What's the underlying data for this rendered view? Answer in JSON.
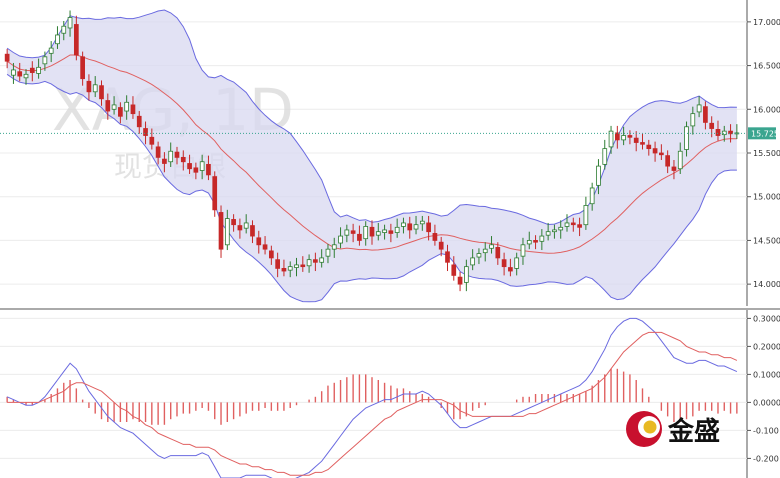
{
  "watermark": {
    "symbol": "XAG, 1D",
    "subtitle": "现货白银"
  },
  "brand": {
    "name": "金盛",
    "color_red": "#c8102e",
    "color_gold": "#e8b923"
  },
  "current_price": {
    "label": "15.725",
    "value": 15.725,
    "tag_color": "#3aa58f"
  },
  "colors": {
    "up": "#2e7d32",
    "down": "#c62828",
    "band_fill": "#d8d8f0",
    "band_line": "#6a6ae0",
    "mid_line": "#e06060",
    "macd_line": "#6a6ae0",
    "signal_line": "#e06060",
    "hist_up": "#e06060",
    "hist_down": "#e06060"
  },
  "chart_data": [
    {
      "type": "candlestick",
      "title": "",
      "ylim": [
        13.75,
        17.25
      ],
      "y_ticks": [
        "17.000",
        "16.500",
        "16.000",
        "15.500",
        "15.000",
        "14.500",
        "14.000"
      ],
      "y_tick_values": [
        17.0,
        16.5,
        16.0,
        15.5,
        15.0,
        14.5,
        14.0
      ],
      "grid": true,
      "overlays": [
        "bollinger-upper",
        "bollinger-middle",
        "bollinger-lower"
      ],
      "close": [
        16.55,
        16.45,
        16.38,
        16.4,
        16.42,
        16.48,
        16.6,
        16.7,
        16.85,
        16.95,
        17.05,
        16.62,
        16.35,
        16.2,
        16.28,
        16.12,
        15.98,
        16.05,
        15.92,
        16.08,
        15.95,
        15.8,
        15.7,
        15.6,
        15.45,
        15.38,
        15.52,
        15.45,
        15.4,
        15.32,
        15.28,
        15.4,
        15.25,
        14.85,
        14.4,
        14.75,
        14.68,
        14.62,
        14.7,
        14.55,
        14.45,
        14.4,
        14.3,
        14.18,
        14.15,
        14.2,
        14.22,
        14.2,
        14.28,
        14.25,
        14.3,
        14.4,
        14.45,
        14.55,
        14.62,
        14.58,
        14.5,
        14.66,
        14.55,
        14.6,
        14.62,
        14.58,
        14.65,
        14.7,
        14.62,
        14.68,
        14.72,
        14.6,
        14.5,
        14.4,
        14.25,
        14.1,
        14.0,
        14.2,
        14.3,
        14.35,
        14.4,
        14.45,
        14.3,
        14.2,
        14.15,
        14.3,
        14.45,
        14.5,
        14.48,
        14.55,
        14.6,
        14.62,
        14.65,
        14.7,
        14.68,
        14.65,
        14.9,
        15.1,
        15.35,
        15.55,
        15.75,
        15.65,
        15.7,
        15.68,
        15.62,
        15.6,
        15.55,
        15.5,
        15.48,
        15.35,
        15.3,
        15.52,
        15.8,
        15.95,
        16.05,
        15.85,
        15.78,
        15.7,
        15.75,
        15.72,
        15.73
      ],
      "open_offset": [
        0.08,
        -0.06,
        0.05,
        -0.04,
        0.05,
        -0.07,
        -0.08,
        -0.06,
        -0.1,
        -0.08,
        -0.12,
        0.35,
        0.25,
        0.12,
        -0.08,
        0.15,
        0.12,
        -0.05,
        0.1,
        -0.1,
        0.1,
        0.12,
        0.08,
        0.08,
        0.12,
        0.05,
        -0.12,
        0.06,
        0.05,
        0.06,
        0.05,
        -0.1,
        0.12,
        0.38,
        0.42,
        -0.3,
        0.06,
        0.05,
        -0.06,
        0.12,
        0.08,
        0.05,
        0.08,
        0.1,
        0.03,
        -0.04,
        -0.03,
        0.02,
        -0.07,
        0.03,
        -0.05,
        -0.08,
        -0.05,
        -0.08,
        -0.06,
        0.03,
        0.07,
        -0.14,
        0.1,
        -0.04,
        -0.03,
        0.03,
        -0.06,
        -0.04,
        0.07,
        -0.05,
        -0.03,
        0.1,
        0.08,
        0.08,
        0.12,
        0.12,
        0.08,
        -0.18,
        -0.08,
        -0.04,
        -0.04,
        -0.04,
        0.12,
        0.08,
        0.04,
        -0.12,
        -0.13,
        -0.04,
        0.02,
        -0.06,
        -0.04,
        -0.02,
        -0.03,
        -0.04,
        0.02,
        0.03,
        -0.22,
        -0.18,
        -0.22,
        -0.18,
        -0.18,
        0.08,
        -0.05,
        0.02,
        0.05,
        0.02,
        0.04,
        0.05,
        0.02,
        0.12,
        0.04,
        -0.2,
        -0.26,
        -0.14,
        -0.08,
        0.18,
        0.06,
        0.07,
        -0.04,
        0.03,
        -0.01
      ]
    },
    {
      "type": "line",
      "title": "",
      "ylim": [
        -0.27,
        0.33
      ],
      "y_ticks": [
        "0.3000",
        "0.2000",
        "0.1000",
        "0.0000",
        "-0.100",
        "-0.200"
      ],
      "y_tick_values": [
        0.3,
        0.2,
        0.1,
        0.0,
        -0.1,
        -0.2
      ],
      "grid": true,
      "series": [
        {
          "values": [
            0.02,
            0.01,
            0.0,
            -0.01,
            -0.01,
            0.0,
            0.02,
            0.05,
            0.08,
            0.11,
            0.14,
            0.12,
            0.08,
            0.04,
            0.01,
            -0.02,
            -0.05,
            -0.07,
            -0.09,
            -0.1,
            -0.11,
            -0.13,
            -0.15,
            -0.17,
            -0.19,
            -0.2,
            -0.19,
            -0.19,
            -0.19,
            -0.19,
            -0.19,
            -0.18,
            -0.19,
            -0.23,
            -0.27,
            -0.27,
            -0.27,
            -0.27,
            -0.26,
            -0.26,
            -0.26,
            -0.26,
            -0.27,
            -0.28,
            -0.28,
            -0.28,
            -0.27,
            -0.26,
            -0.25,
            -0.23,
            -0.21,
            -0.18,
            -0.15,
            -0.12,
            -0.09,
            -0.06,
            -0.04,
            -0.02,
            -0.01,
            0.0,
            0.01,
            0.01,
            0.02,
            0.03,
            0.03,
            0.03,
            0.04,
            0.03,
            0.01,
            -0.01,
            -0.04,
            -0.07,
            -0.09,
            -0.09,
            -0.08,
            -0.07,
            -0.06,
            -0.05,
            -0.05,
            -0.05,
            -0.05,
            -0.04,
            -0.03,
            -0.02,
            -0.01,
            0.0,
            0.01,
            0.02,
            0.03,
            0.04,
            0.05,
            0.06,
            0.08,
            0.11,
            0.15,
            0.19,
            0.24,
            0.27,
            0.29,
            0.3,
            0.3,
            0.29,
            0.27,
            0.25,
            0.22,
            0.19,
            0.16,
            0.15,
            0.14,
            0.14,
            0.15,
            0.15,
            0.14,
            0.13,
            0.13,
            0.12,
            0.11
          ]
        },
        {
          "values": [
            0.0,
            0.0,
            0.0,
            0.0,
            0.0,
            0.0,
            0.01,
            0.02,
            0.03,
            0.04,
            0.06,
            0.07,
            0.07,
            0.06,
            0.05,
            0.04,
            0.02,
            0.0,
            -0.02,
            -0.03,
            -0.05,
            -0.06,
            -0.08,
            -0.09,
            -0.11,
            -0.12,
            -0.13,
            -0.14,
            -0.15,
            -0.15,
            -0.16,
            -0.16,
            -0.16,
            -0.17,
            -0.19,
            -0.2,
            -0.21,
            -0.22,
            -0.22,
            -0.23,
            -0.23,
            -0.24,
            -0.24,
            -0.25,
            -0.25,
            -0.26,
            -0.26,
            -0.26,
            -0.26,
            -0.25,
            -0.25,
            -0.24,
            -0.22,
            -0.2,
            -0.18,
            -0.16,
            -0.14,
            -0.12,
            -0.1,
            -0.08,
            -0.06,
            -0.05,
            -0.03,
            -0.02,
            -0.01,
            0.0,
            0.01,
            0.01,
            0.01,
            0.01,
            0.0,
            -0.01,
            -0.03,
            -0.04,
            -0.05,
            -0.05,
            -0.05,
            -0.05,
            -0.05,
            -0.05,
            -0.05,
            -0.05,
            -0.05,
            -0.04,
            -0.04,
            -0.03,
            -0.02,
            -0.01,
            0.0,
            0.01,
            0.02,
            0.03,
            0.04,
            0.05,
            0.07,
            0.09,
            0.12,
            0.15,
            0.18,
            0.2,
            0.22,
            0.24,
            0.25,
            0.25,
            0.25,
            0.24,
            0.23,
            0.22,
            0.2,
            0.19,
            0.18,
            0.18,
            0.17,
            0.17,
            0.16,
            0.16,
            0.15
          ]
        }
      ],
      "histogram": [
        0.02,
        0.01,
        0.0,
        -0.01,
        -0.01,
        0.0,
        0.01,
        0.03,
        0.05,
        0.07,
        0.08,
        0.05,
        0.01,
        -0.02,
        -0.04,
        -0.06,
        -0.07,
        -0.07,
        -0.07,
        -0.07,
        -0.06,
        -0.07,
        -0.07,
        -0.08,
        -0.08,
        -0.08,
        -0.06,
        -0.05,
        -0.04,
        -0.04,
        -0.03,
        -0.02,
        -0.03,
        -0.06,
        -0.08,
        -0.07,
        -0.06,
        -0.05,
        -0.04,
        -0.03,
        -0.03,
        -0.02,
        -0.03,
        -0.03,
        -0.03,
        -0.02,
        -0.01,
        0.0,
        0.01,
        0.02,
        0.04,
        0.06,
        0.07,
        0.08,
        0.09,
        0.1,
        0.1,
        0.1,
        0.09,
        0.08,
        0.07,
        0.06,
        0.05,
        0.05,
        0.04,
        0.03,
        0.03,
        0.02,
        0.0,
        -0.02,
        -0.04,
        -0.06,
        -0.06,
        -0.05,
        -0.03,
        -0.02,
        -0.01,
        0.0,
        0.0,
        0.0,
        0.0,
        0.01,
        0.02,
        0.02,
        0.03,
        0.03,
        0.03,
        0.03,
        0.03,
        0.03,
        0.03,
        0.03,
        0.04,
        0.06,
        0.08,
        0.1,
        0.12,
        0.12,
        0.11,
        0.1,
        0.08,
        0.05,
        0.02,
        0.0,
        -0.03,
        -0.05,
        -0.07,
        -0.07,
        -0.06,
        -0.05,
        -0.03,
        -0.03,
        -0.03,
        -0.04,
        -0.03,
        -0.04,
        -0.04
      ]
    }
  ]
}
